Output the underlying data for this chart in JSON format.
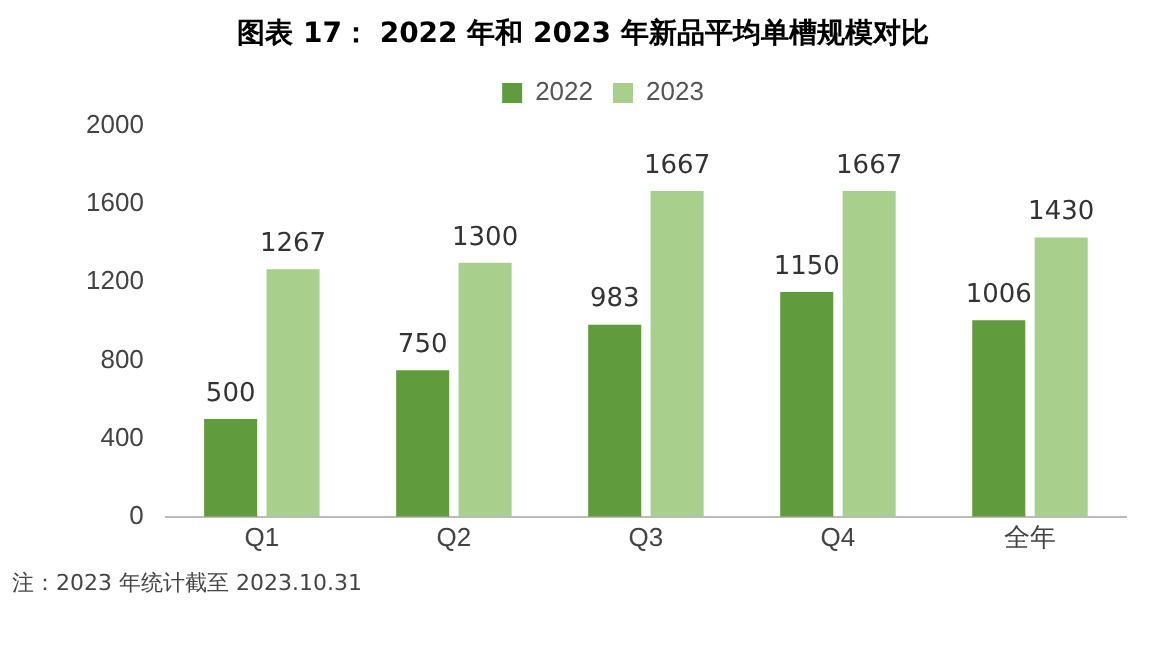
{
  "chart_data": {
    "type": "bar",
    "title": "图表 17：  2022 年和 2023 年新品平均单槽规模对比",
    "categories": [
      "Q1",
      "Q2",
      "Q3",
      "Q4",
      "全年"
    ],
    "series": [
      {
        "name": "2022",
        "color": "#609b3e",
        "values": [
          500,
          750,
          983,
          1150,
          1006
        ]
      },
      {
        "name": "2023",
        "color": "#a8cf8c",
        "values": [
          1267,
          1300,
          1667,
          1667,
          1430
        ]
      }
    ],
    "ylim": [
      0,
      2000
    ],
    "yticks": [
      0,
      400,
      800,
      1200,
      1600,
      2000
    ],
    "grid": false,
    "legend": "top",
    "data_labels": true,
    "annotations": [
      "注：2023 年统计截至 2023.10.31"
    ]
  }
}
